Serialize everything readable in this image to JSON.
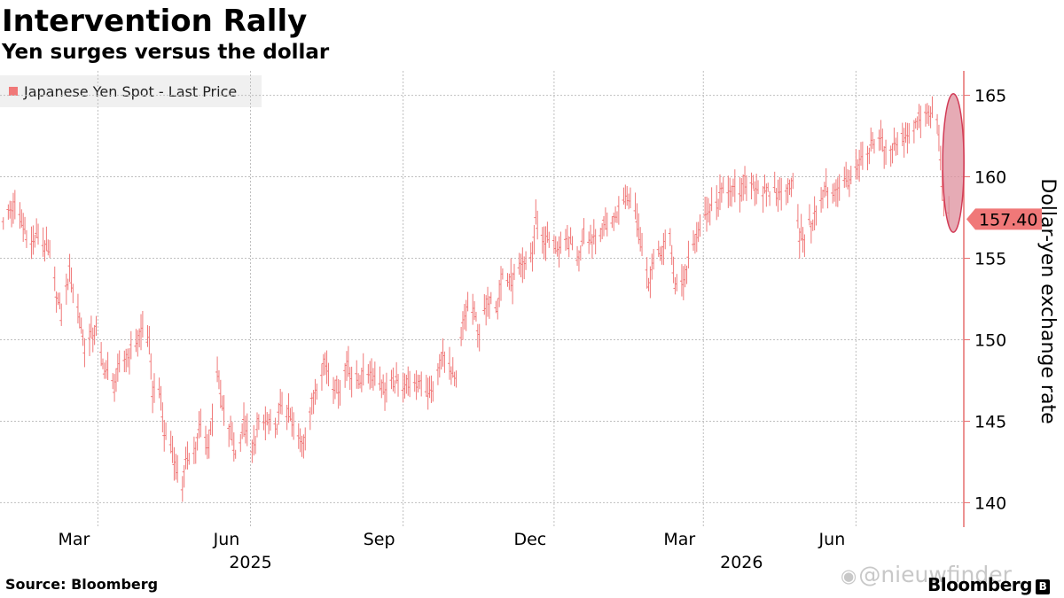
{
  "header": {
    "title": "Intervention Rally",
    "subtitle": "Yen surges versus the dollar"
  },
  "legend": {
    "label": "Japanese Yen Spot - Last Price"
  },
  "footer": {
    "source": "Source: Bloomberg",
    "brand": "Bloomberg",
    "brand_icon": "bloomberg-b-icon",
    "watermark": "@nieuwfinder",
    "watermark_icon": "weibo-icon"
  },
  "colors": {
    "series": "#f07878",
    "axis": "#e66e6e",
    "highlight_fill": "#dd8f9c",
    "highlight_stroke": "#d23b56",
    "last_price_tag": "#f07878",
    "grid": "#bfbfbf"
  },
  "chart_data": {
    "type": "line",
    "style": "daily high-low bars",
    "ylabel": "Dollar-yen exchange rate",
    "ylim": [
      138.5,
      166.5
    ],
    "y_ticks": [
      140,
      145,
      150,
      155,
      160,
      165
    ],
    "grid": true,
    "legend_position": "top-left",
    "x_range": [
      "2025-01-01",
      "2026-08-05"
    ],
    "x_tick_labels": [
      {
        "date": "2025-03-01",
        "label": "Mar"
      },
      {
        "date": "2025-06-01",
        "label": "Jun"
      },
      {
        "date": "2025-09-01",
        "label": "Sep"
      },
      {
        "date": "2025-12-01",
        "label": "Dec"
      },
      {
        "date": "2026-03-01",
        "label": "Mar"
      },
      {
        "date": "2026-06-01",
        "label": "Jun"
      }
    ],
    "year_labels": [
      {
        "date": "2025-06-01",
        "label": "2025"
      },
      {
        "date": "2026-03-24",
        "label": "2026"
      }
    ],
    "gridline_dates": [
      "2025-03-01",
      "2025-06-01",
      "2025-09-01",
      "2025-12-01",
      "2026-03-01",
      "2026-06-01"
    ],
    "last_value": 157.4,
    "last_value_label": "157.40",
    "highlight": {
      "shape": "ellipse",
      "date": "2026-07-27",
      "y_range": [
        156.6,
        165.1
      ]
    },
    "series": [
      {
        "name": "Japanese Yen Spot - Last Price",
        "points": [
          [
            "2025-01-03",
            157.5
          ],
          [
            "2025-01-10",
            158.2
          ],
          [
            "2025-01-15",
            157.0
          ],
          [
            "2025-01-20",
            155.8
          ],
          [
            "2025-01-24",
            156.4
          ],
          [
            "2025-01-31",
            155.1
          ],
          [
            "2025-02-07",
            151.4
          ],
          [
            "2025-02-12",
            154.2
          ],
          [
            "2025-02-18",
            151.5
          ],
          [
            "2025-02-21",
            149.5
          ],
          [
            "2025-02-28",
            150.6
          ],
          [
            "2025-03-04",
            148.4
          ],
          [
            "2025-03-07",
            147.9
          ],
          [
            "2025-03-11",
            147.1
          ],
          [
            "2025-03-14",
            148.2
          ],
          [
            "2025-03-19",
            149.1
          ],
          [
            "2025-03-25",
            149.9
          ],
          [
            "2025-03-28",
            150.7
          ],
          [
            "2025-04-01",
            149.8
          ],
          [
            "2025-04-03",
            146.8
          ],
          [
            "2025-04-07",
            147.3
          ],
          [
            "2025-04-10",
            144.2
          ],
          [
            "2025-04-14",
            143.6
          ],
          [
            "2025-04-17",
            142.3
          ],
          [
            "2025-04-21",
            141.0
          ],
          [
            "2025-04-24",
            142.9
          ],
          [
            "2025-04-28",
            143.0
          ],
          [
            "2025-05-02",
            144.7
          ],
          [
            "2025-05-07",
            143.4
          ],
          [
            "2025-05-09",
            145.4
          ],
          [
            "2025-05-12",
            148.2
          ],
          [
            "2025-05-15",
            145.8
          ],
          [
            "2025-05-20",
            144.4
          ],
          [
            "2025-05-23",
            142.9
          ],
          [
            "2025-05-28",
            144.8
          ],
          [
            "2025-06-02",
            143.0
          ],
          [
            "2025-06-06",
            144.8
          ],
          [
            "2025-06-11",
            144.9
          ],
          [
            "2025-06-16",
            144.5
          ],
          [
            "2025-06-20",
            146.1
          ],
          [
            "2025-06-25",
            145.2
          ],
          [
            "2025-06-30",
            143.9
          ],
          [
            "2025-07-03",
            143.9
          ],
          [
            "2025-07-08",
            146.1
          ],
          [
            "2025-07-11",
            147.3
          ],
          [
            "2025-07-16",
            148.8
          ],
          [
            "2025-07-21",
            147.3
          ],
          [
            "2025-07-25",
            147.0
          ],
          [
            "2025-07-30",
            148.8
          ],
          [
            "2025-08-01",
            147.7
          ],
          [
            "2025-08-06",
            147.5
          ],
          [
            "2025-08-12",
            148.1
          ],
          [
            "2025-08-18",
            147.4
          ],
          [
            "2025-08-22",
            146.9
          ],
          [
            "2025-08-27",
            147.4
          ],
          [
            "2025-09-01",
            147.2
          ],
          [
            "2025-09-05",
            147.4
          ],
          [
            "2025-09-09",
            147.0
          ],
          [
            "2025-09-12",
            147.7
          ],
          [
            "2025-09-17",
            146.5
          ],
          [
            "2025-09-22",
            147.9
          ],
          [
            "2025-09-26",
            149.4
          ],
          [
            "2025-10-01",
            147.6
          ],
          [
            "2025-10-03",
            147.4
          ],
          [
            "2025-10-07",
            150.8
          ],
          [
            "2025-10-10",
            151.9
          ],
          [
            "2025-10-14",
            151.6
          ],
          [
            "2025-10-17",
            150.5
          ],
          [
            "2025-10-21",
            151.8
          ],
          [
            "2025-10-24",
            152.9
          ],
          [
            "2025-10-28",
            152.1
          ],
          [
            "2025-10-31",
            154.0
          ],
          [
            "2025-11-05",
            153.5
          ],
          [
            "2025-11-10",
            154.2
          ],
          [
            "2025-11-14",
            154.6
          ],
          [
            "2025-11-18",
            155.3
          ],
          [
            "2025-11-20",
            157.3
          ],
          [
            "2025-11-25",
            156.1
          ],
          [
            "2025-11-28",
            156.1
          ],
          [
            "2025-12-02",
            155.8
          ],
          [
            "2025-12-05",
            155.3
          ],
          [
            "2025-12-09",
            156.0
          ],
          [
            "2025-12-12",
            155.8
          ],
          [
            "2025-12-16",
            154.9
          ],
          [
            "2025-12-19",
            157.0
          ],
          [
            "2025-12-23",
            156.1
          ],
          [
            "2025-12-30",
            156.9
          ],
          [
            "2026-01-05",
            157.2
          ],
          [
            "2026-01-09",
            158.0
          ],
          [
            "2026-01-14",
            158.8
          ],
          [
            "2026-01-19",
            158.2
          ],
          [
            "2026-01-23",
            155.7
          ],
          [
            "2026-01-27",
            153.5
          ],
          [
            "2026-01-30",
            154.6
          ],
          [
            "2026-02-04",
            155.5
          ],
          [
            "2026-02-09",
            156.2
          ],
          [
            "2026-02-12",
            153.3
          ],
          [
            "2026-02-17",
            153.3
          ],
          [
            "2026-02-20",
            155.1
          ],
          [
            "2026-02-25",
            156.3
          ],
          [
            "2026-03-02",
            157.3
          ],
          [
            "2026-03-05",
            157.9
          ],
          [
            "2026-03-10",
            158.4
          ],
          [
            "2026-03-13",
            159.2
          ],
          [
            "2026-03-18",
            159.4
          ],
          [
            "2026-03-23",
            158.6
          ],
          [
            "2026-03-26",
            159.7
          ],
          [
            "2026-03-31",
            159.6
          ],
          [
            "2026-04-03",
            159.3
          ],
          [
            "2026-04-08",
            158.9
          ],
          [
            "2026-04-13",
            159.2
          ],
          [
            "2026-04-16",
            158.8
          ],
          [
            "2026-04-21",
            159.6
          ],
          [
            "2026-04-24",
            159.6
          ],
          [
            "2026-04-28",
            156.2
          ],
          [
            "2026-05-01",
            156.4
          ],
          [
            "2026-05-06",
            157.4
          ],
          [
            "2026-05-11",
            158.4
          ],
          [
            "2026-05-14",
            159.2
          ],
          [
            "2026-05-19",
            159.1
          ],
          [
            "2026-05-22",
            159.5
          ],
          [
            "2026-05-27",
            159.7
          ],
          [
            "2026-06-01",
            160.2
          ],
          [
            "2026-06-04",
            160.8
          ],
          [
            "2026-06-09",
            161.4
          ],
          [
            "2026-06-12",
            162.1
          ],
          [
            "2026-06-17",
            162.2
          ],
          [
            "2026-06-19",
            161.7
          ],
          [
            "2026-06-24",
            161.8
          ],
          [
            "2026-06-29",
            162.4
          ],
          [
            "2026-07-02",
            162.6
          ],
          [
            "2026-07-07",
            163.2
          ],
          [
            "2026-07-10",
            163.7
          ],
          [
            "2026-07-15",
            163.8
          ],
          [
            "2026-07-20",
            163.6
          ],
          [
            "2026-07-22",
            161.2
          ],
          [
            "2026-07-24",
            158.3
          ],
          [
            "2026-07-27",
            157.4
          ]
        ]
      }
    ]
  }
}
